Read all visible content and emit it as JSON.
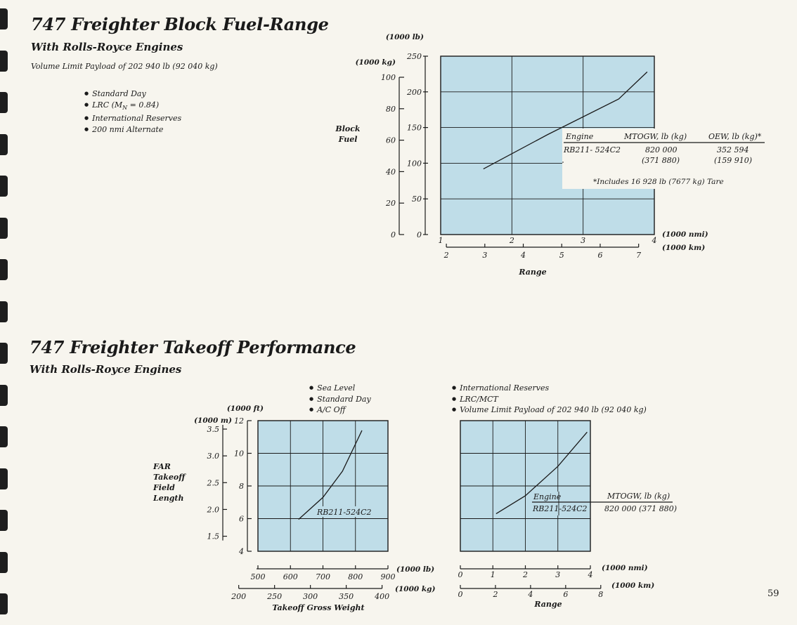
{
  "page_number": "59",
  "block_fuel": {
    "title": "747 Freighter Block Fuel-Range",
    "subtitle": "With Rolls-Royce Engines",
    "payload_note": "Volume Limit Payload of 202 940 lb (92 040 kg)",
    "conditions": [
      "Standard Day",
      "LRC (M",
      "International Reserves",
      "200 nmi Alternate"
    ],
    "lrc_subscript": "N",
    "lrc_value": " =  0.84)",
    "table": {
      "headers": [
        "Engine",
        "MTOGW, lb (kg)",
        "OEW, lb (kg)*"
      ],
      "engine": "RB211- 524C2",
      "mtogw_lb": "820 000",
      "mtogw_kg": "(371 880)",
      "oew_lb": "352 594",
      "oew_kg": "(159 910)",
      "footnote": "*Includes 16 928 lb (7677 kg) Tare"
    }
  },
  "takeoff": {
    "title": "747 Freighter Takeoff Performance",
    "subtitle": "With Rolls-Royce Engines",
    "conditions_left": [
      "Sea Level",
      "Standard Day",
      "A/C Off"
    ],
    "conditions_right": [
      "International Reserves",
      "LRC/MCT",
      "Volume Limit Payload of 202 940 lb  (92 040 kg)"
    ],
    "right_table": {
      "headers": [
        "Engine",
        "MTOGW, lb (kg)"
      ],
      "engine": "RB211-524C2",
      "mtogw": "820 000 (371 880)"
    }
  },
  "chart_data": [
    {
      "type": "line",
      "title": "747 Freighter Block Fuel-Range",
      "ylabel": "Block Fuel",
      "xlabel": "Range",
      "y_units": [
        "(1000 lb)",
        "(1000 kg)"
      ],
      "x_units": [
        "(1000 nmi)",
        "(1000 km)"
      ],
      "xlim": [
        1,
        4
      ],
      "ylim": [
        0,
        250
      ],
      "x_ticks": [
        "1",
        "2",
        "3",
        "4"
      ],
      "y_ticks": [
        "0",
        "50",
        "100",
        "150",
        "200",
        "250"
      ],
      "y2_ticks": [
        "0",
        "20",
        "40",
        "60",
        "80",
        "100"
      ],
      "x2_ticks": [
        "2",
        "3",
        "4",
        "5",
        "6",
        "7"
      ],
      "grid": true,
      "series": [
        {
          "name": "RB211- 524C2",
          "x": [
            1.6,
            2.5,
            3.5,
            3.9
          ],
          "y": [
            92,
            140,
            190,
            228
          ]
        }
      ]
    },
    {
      "type": "line",
      "ylabel": "FAR Takeoff Field Length",
      "xlabel": "Takeoff Gross Weight",
      "y_units": [
        "(1000 ft)",
        "(1000 m)"
      ],
      "x_units": [
        "(1000 lb)",
        "(1000 kg)"
      ],
      "xlim": [
        500,
        900
      ],
      "ylim": [
        4,
        12
      ],
      "x_ticks": [
        "500",
        "600",
        "700",
        "800",
        "900"
      ],
      "y_ticks": [
        "4",
        "6",
        "8",
        "10",
        "12"
      ],
      "y2_ticks": [
        "1.5",
        "2.0",
        "2.5",
        "3.0",
        "3.5"
      ],
      "x2_ticks": [
        "200",
        "250",
        "300",
        "350",
        "400"
      ],
      "grid": true,
      "series": [
        {
          "name": "RB211-524C2",
          "x": [
            625,
            700,
            760,
            820
          ],
          "y": [
            5.95,
            7.3,
            8.9,
            11.4
          ]
        }
      ]
    },
    {
      "type": "line",
      "ylabel": "FAR Takeoff Field Length",
      "xlabel": "Range",
      "x_units": [
        "(1000 nmi)",
        "(1000 km)"
      ],
      "xlim": [
        0,
        4
      ],
      "ylim": [
        4,
        12
      ],
      "x_ticks": [
        "0",
        "1",
        "2",
        "3",
        "4"
      ],
      "x2_ticks": [
        "0",
        "2",
        "4",
        "6",
        "8"
      ],
      "grid": true,
      "series": [
        {
          "name": "RB211-524C2",
          "x": [
            1.1,
            2.0,
            3.0,
            3.9
          ],
          "y": [
            6.3,
            7.4,
            9.2,
            11.3
          ]
        }
      ]
    }
  ]
}
